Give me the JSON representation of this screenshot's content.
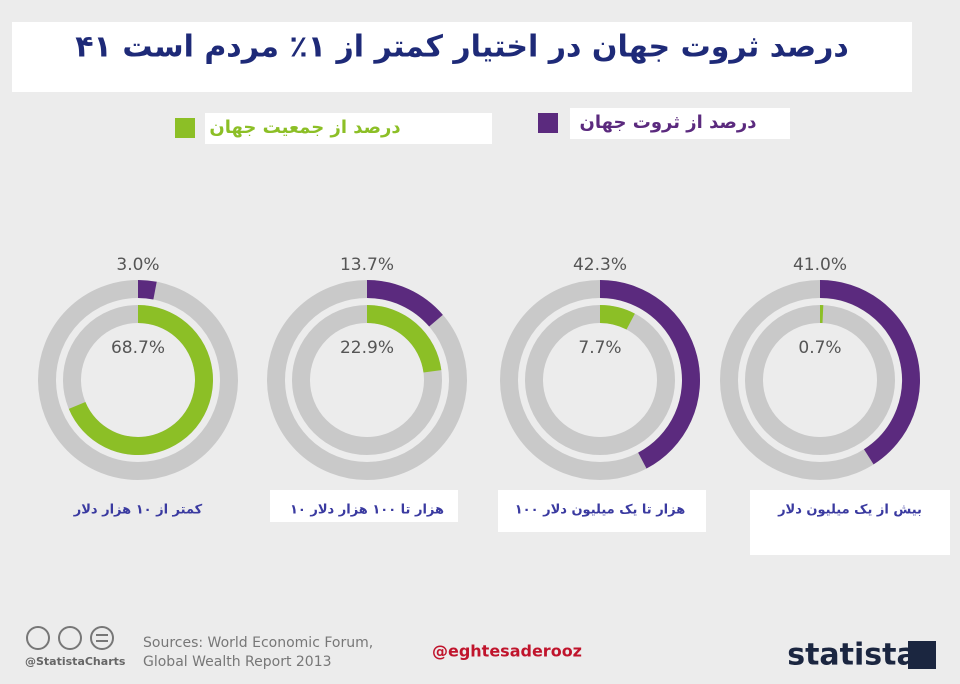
{
  "chart_data": {
    "type": "donut",
    "title": "۴۱ درصد ثروت جهان در اختیار کمتر از ۱٪ مردم است",
    "categories": [
      "کمتر از ۱۰ هزار دلار",
      "۱۰ هزار تا ۱۰۰ هزار دلار",
      "۱۰۰ هزار تا یک میلیون دلار",
      "بیش از یک میلیون دلار"
    ],
    "track_color": "#c9c9c9",
    "series": [
      {
        "name": "درصد از ثروت جهان",
        "color": "#5b2a7e",
        "values": [
          3.0,
          13.7,
          42.3,
          41.0
        ],
        "value_labels": [
          "3.0%",
          "13.7%",
          "42.3%",
          "41.0%"
        ]
      },
      {
        "name": "درصد از جمعیت جهان",
        "color": "#8cbf26",
        "values": [
          68.7,
          22.9,
          7.7,
          0.7
        ],
        "value_labels": [
          "68.7%",
          "22.9%",
          "7.7%",
          "0.7%"
        ]
      }
    ]
  },
  "footer": {
    "sources": [
      "Sources: World Economic Forum,",
      "Global Wealth Report 2013"
    ],
    "handle": "@StatistaCharts",
    "credit": "@eghtesaderooz",
    "brand": "statista"
  }
}
